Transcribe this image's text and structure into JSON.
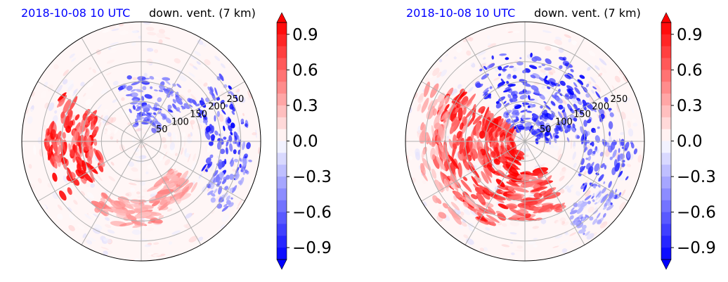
{
  "colors": {
    "positive": "#ff0000",
    "negative": "#0000ff",
    "neutral": "#ffffff",
    "date_text": "#0000ff",
    "grid": "#b0b0b0"
  },
  "chart_data": [
    {
      "type": "heatmap",
      "projection": "polar",
      "title_left": "2018-10-08 10 UTC",
      "title_right": "down. vent. (7 km)",
      "radial_ticks": [
        50,
        100,
        150,
        200,
        250
      ],
      "radial_max": 300,
      "angular_grid_deg": [
        0,
        30,
        60,
        90,
        120,
        150,
        180,
        210,
        240,
        270,
        300,
        330
      ],
      "grid": true,
      "colorbar": {
        "ticks": [
          0.9,
          0.6,
          0.3,
          0.0,
          -0.3,
          -0.6,
          -0.9
        ],
        "tick_labels": [
          "0.9",
          "0.6",
          "0.3",
          "0.0",
          "−0.3",
          "−0.6",
          "−0.9"
        ],
        "range": [
          -1.0,
          1.0
        ],
        "extend": "both",
        "cmap": "bwr"
      },
      "features": [
        {
          "sign": "positive",
          "r": [
            110,
            240
          ],
          "theta": [
            150,
            215
          ],
          "strength": 1.0
        },
        {
          "sign": "positive",
          "r": [
            150,
            220
          ],
          "theta": [
            235,
            285
          ],
          "strength": 0.55
        },
        {
          "sign": "positive",
          "r": [
            100,
            180
          ],
          "theta": [
            285,
            320
          ],
          "strength": 0.45
        },
        {
          "sign": "negative",
          "r": [
            40,
            170
          ],
          "theta": [
            35,
            110
          ],
          "strength": 0.8
        },
        {
          "sign": "negative",
          "r": [
            160,
            270
          ],
          "theta": [
            -25,
            40
          ],
          "strength": 1.0
        },
        {
          "sign": "negative",
          "r": [
            200,
            280
          ],
          "theta": [
            320,
            350
          ],
          "strength": 0.6
        }
      ]
    },
    {
      "type": "heatmap",
      "projection": "polar",
      "title_left": "2018-10-08 10 UTC",
      "title_right": "down. vent. (7 km)",
      "radial_ticks": [
        50,
        100,
        150,
        200,
        250
      ],
      "radial_max": 300,
      "angular_grid_deg": [
        0,
        30,
        60,
        90,
        120,
        150,
        180,
        210,
        240,
        270,
        300,
        330
      ],
      "grid": true,
      "colorbar": {
        "ticks": [
          0.9,
          0.6,
          0.3,
          0.0,
          -0.3,
          -0.6,
          -0.9
        ],
        "tick_labels": [
          "0.9",
          "0.6",
          "0.3",
          "0.0",
          "−0.3",
          "−0.6",
          "−0.9"
        ],
        "range": [
          -1.0,
          1.0
        ],
        "extend": "both",
        "cmap": "bwr"
      },
      "features": [
        {
          "sign": "positive",
          "r": [
            30,
            230
          ],
          "theta": [
            140,
            250
          ],
          "strength": 1.0
        },
        {
          "sign": "positive",
          "r": [
            80,
            200
          ],
          "theta": [
            250,
            300
          ],
          "strength": 0.95
        },
        {
          "sign": "positive",
          "r": [
            200,
            280
          ],
          "theta": [
            150,
            230
          ],
          "strength": 0.45
        },
        {
          "sign": "negative",
          "r": [
            30,
            230
          ],
          "theta": [
            0,
            130
          ],
          "strength": 1.0
        },
        {
          "sign": "negative",
          "r": [
            150,
            280
          ],
          "theta": [
            -40,
            0
          ],
          "strength": 0.85
        },
        {
          "sign": "negative",
          "r": [
            200,
            280
          ],
          "theta": [
            300,
            330
          ],
          "strength": 0.5
        }
      ]
    }
  ]
}
